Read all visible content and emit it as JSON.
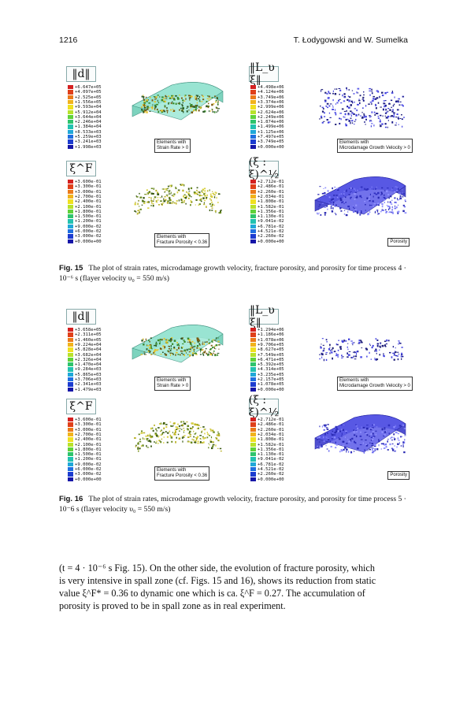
{
  "header": {
    "page_number": "1216",
    "authors": "T. Łodygowski and W. Sumelka"
  },
  "figure15": {
    "panels": [
      {
        "symbol": "‖d‖",
        "legend": [
          "+6.647e+05",
          "+4.097e+05",
          "+2.525e+05",
          "+1.556e+05",
          "+9.593e+04",
          "+5.912e+04",
          "+3.644e+04",
          "+2.246e+04",
          "+1.384e+04",
          "+8.533e+03",
          "+5.259e+03",
          "+3.241e+03",
          "+1.998e+03"
        ],
        "tag_lines": [
          "Elements with",
          "Strain Rate > 0"
        ]
      },
      {
        "symbol": "‖L_υ ξ‖",
        "legend": [
          "+4.498e+06",
          "+4.124e+06",
          "+3.749e+06",
          "+3.374e+06",
          "+2.999e+06",
          "+2.624e+06",
          "+2.249e+06",
          "+1.874e+06",
          "+1.499e+06",
          "+1.125e+06",
          "+7.497e+05",
          "+3.749e+05",
          "+0.000e+00"
        ],
        "tag_lines": [
          "Elements with",
          "Microdamage Growth Velocity > 0"
        ]
      },
      {
        "symbol": "ξ^F",
        "legend": [
          "+3.600e-01",
          "+3.300e-01",
          "+3.000e-01",
          "+2.700e-01",
          "+2.400e-01",
          "+2.100e-01",
          "+1.800e-01",
          "+1.500e-01",
          "+1.200e-01",
          "+9.000e-02",
          "+6.000e-02",
          "+3.000e-02",
          "+0.000e+00"
        ],
        "tag_lines": [
          "Elements with",
          "Fracture Porosity < 0.36"
        ]
      },
      {
        "symbol": "(ξ : ξ)^½",
        "legend": [
          "+2.712e-01",
          "+2.486e-01",
          "+2.260e-01",
          "+2.034e-01",
          "+1.808e-01",
          "+1.582e-01",
          "+1.356e-01",
          "+1.130e-01",
          "+9.041e-02",
          "+6.781e-02",
          "+4.521e-02",
          "+2.260e-02",
          "+0.000e+00"
        ],
        "tag_lines": [
          "Porosity"
        ]
      }
    ],
    "caption_label": "Fig. 15",
    "caption_text": "The plot of strain rates, microdamage growth velocity, fracture porosity, and porosity for time process 4 · 10⁻⁶ s (flayer velocity υ₀ = 550 m/s)"
  },
  "figure16": {
    "panels": [
      {
        "symbol": "‖d‖",
        "legend": [
          "+3.658e+05",
          "+2.311e+05",
          "+1.460e+05",
          "+9.224e+04",
          "+5.828e+04",
          "+3.682e+04",
          "+2.326e+04",
          "+1.470e+04",
          "+9.284e+03",
          "+5.865e+03",
          "+3.706e+03",
          "+2.341e+03",
          "+1.479e+03"
        ],
        "tag_lines": [
          "Elements with",
          "Strain Rate > 0"
        ]
      },
      {
        "symbol": "‖L_υ ξ‖",
        "legend": [
          "+1.294e+06",
          "+1.186e+06",
          "+1.078e+06",
          "+9.706e+05",
          "+8.627e+05",
          "+7.549e+05",
          "+6.471e+05",
          "+5.392e+05",
          "+4.314e+05",
          "+3.235e+05",
          "+2.157e+05",
          "+1.078e+05",
          "+0.000e+00"
        ],
        "tag_lines": [
          "Elements with",
          "Microdamage Growth Velocity > 0"
        ]
      },
      {
        "symbol": "ξ^F",
        "legend": [
          "+3.600e-01",
          "+3.300e-01",
          "+3.000e-01",
          "+2.700e-01",
          "+2.400e-01",
          "+2.100e-01",
          "+1.800e-01",
          "+1.500e-01",
          "+1.200e-01",
          "+9.000e-02",
          "+6.000e-02",
          "+3.000e-02",
          "+0.000e+00"
        ],
        "tag_lines": [
          "Elements with",
          "Fracture Porosity < 0.36"
        ]
      },
      {
        "symbol": "(ξ : ξ)^½",
        "legend": [
          "+2.712e-01",
          "+2.486e-01",
          "+2.260e-01",
          "+2.034e-01",
          "+1.808e-01",
          "+1.582e-01",
          "+1.356e-01",
          "+1.130e-01",
          "+9.041e-02",
          "+6.781e-02",
          "+4.521e-02",
          "+2.260e-02",
          "+0.000e+00"
        ],
        "tag_lines": [
          "Porosity"
        ]
      }
    ],
    "caption_label": "Fig. 16",
    "caption_text": "The plot of strain rates, microdamage growth velocity, fracture porosity, and porosity for time process 5 · 10⁻6 s (flayer velocity υ₀ = 550 m/s)"
  },
  "legend_colors": [
    "#d42020",
    "#e0401a",
    "#ec7a1a",
    "#f2b31c",
    "#f0e020",
    "#b8e22a",
    "#5fd23a",
    "#2ec46c",
    "#22c2b0",
    "#20a8d8",
    "#1f6fe0",
    "#1c3cd0",
    "#1616a8"
  ],
  "body_lines": [
    "(t = 4 · 10⁻⁶ s Fig. 15). On the other side, the evolution of fracture porosity, which",
    "is very intensive in spall zone (cf. Figs. 15 and 16), shows its reduction from static",
    "value ξ^F* = 0.36 to dynamic one which is ca. ξ^F = 0.27. The accumulation of",
    "porosity is proved to be in spall zone as in real experiment."
  ]
}
